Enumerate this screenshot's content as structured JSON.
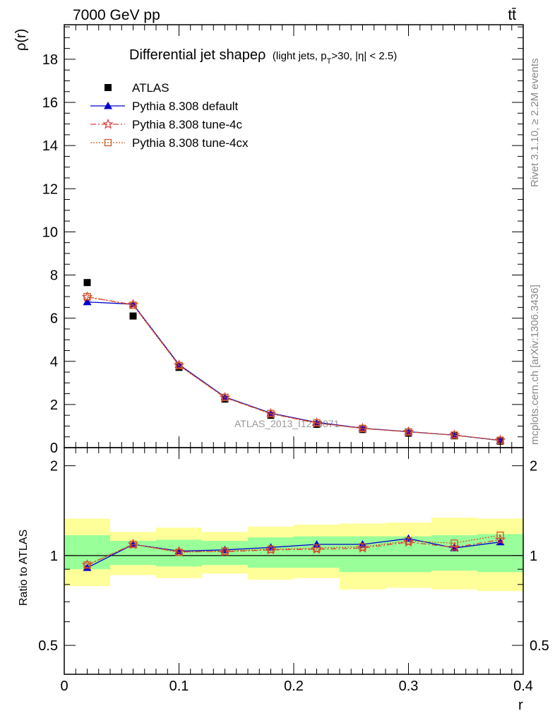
{
  "header": {
    "left": "7000 GeV pp",
    "right": "tt̄"
  },
  "side_labels": {
    "rivet": "Rivet 3.1.10, ≥ 2.2M events",
    "mcplots": "mcplots.cern.ch [arXiv:1306.3436]"
  },
  "chart_data": [
    {
      "type": "scatter",
      "title": "Differential jet shapeρ (light jets, pT>30, |η| < 2.5)",
      "title_main": "Differential jet shapeρ",
      "title_sub": "(light jets, p",
      "title_sub_T": "T",
      "title_sub_rest": ">30, |η| < 2.5)",
      "watermark": "ATLAS_2013_I1243871",
      "xlabel": "r",
      "ylabel": "ρ(r)",
      "xlim": [
        0,
        0.4
      ],
      "ylim": [
        0,
        19.6
      ],
      "x_ticks": [
        "0",
        "0.1",
        "0.2",
        "0.3",
        "0.4"
      ],
      "y_ticks": [
        "0",
        "2",
        "4",
        "6",
        "8",
        "10",
        "12",
        "14",
        "16",
        "18"
      ],
      "grid": false,
      "legend_position": "top-left",
      "x": [
        0.02,
        0.06,
        0.1,
        0.14,
        0.18,
        0.22,
        0.26,
        0.3,
        0.34,
        0.38
      ],
      "series": [
        {
          "name": "ATLAS",
          "color": "#000000",
          "marker": "square",
          "values": [
            7.65,
            6.1,
            3.72,
            2.25,
            1.5,
            1.08,
            0.84,
            0.67,
            0.55,
            0.3
          ]
        },
        {
          "name": "Pythia 8.308 default",
          "color": "#0000cc",
          "marker": "triangle",
          "line": "solid",
          "values": [
            6.75,
            6.65,
            3.85,
            2.35,
            1.6,
            1.17,
            0.9,
            0.74,
            0.58,
            0.33
          ]
        },
        {
          "name": "Pythia 8.308 tune-4c",
          "color": "#e03c3c",
          "marker": "star",
          "line": "dashdot",
          "values": [
            6.98,
            6.63,
            3.82,
            2.32,
            1.57,
            1.14,
            0.89,
            0.73,
            0.58,
            0.34
          ]
        },
        {
          "name": "Pythia 8.308 tune-4cx",
          "color": "#cc5a1e",
          "marker": "open-square",
          "line": "dotted",
          "values": [
            7.0,
            6.6,
            3.8,
            2.33,
            1.58,
            1.15,
            0.89,
            0.73,
            0.58,
            0.34
          ]
        }
      ]
    },
    {
      "type": "scatter",
      "ylabel": "Ratio to ATLAS",
      "xlabel": "r",
      "xlim": [
        0,
        0.4
      ],
      "ylim": [
        0.4,
        2.3
      ],
      "y_scale": "log",
      "y_ticks": [
        "0.5",
        "1",
        "2"
      ],
      "reference_line": 1,
      "x": [
        0.02,
        0.06,
        0.1,
        0.14,
        0.18,
        0.22,
        0.26,
        0.3,
        0.34,
        0.38
      ],
      "bin_edges": [
        0,
        0.04,
        0.08,
        0.12,
        0.16,
        0.2,
        0.24,
        0.28,
        0.32,
        0.36,
        0.4
      ],
      "band_inner": {
        "color": "#99ff99",
        "low": [
          0.9,
          0.93,
          0.92,
          0.93,
          0.91,
          0.91,
          0.88,
          0.88,
          0.89,
          0.88
        ],
        "high": [
          1.17,
          1.12,
          1.13,
          1.12,
          1.15,
          1.16,
          1.16,
          1.16,
          1.17,
          1.18
        ]
      },
      "band_outer": {
        "color": "#ffff99",
        "low": [
          0.79,
          0.86,
          0.84,
          0.87,
          0.83,
          0.84,
          0.77,
          0.78,
          0.77,
          0.76
        ],
        "high": [
          1.33,
          1.2,
          1.24,
          1.2,
          1.25,
          1.27,
          1.28,
          1.29,
          1.34,
          1.33
        ]
      },
      "series": [
        {
          "name": "Pythia 8.308 default",
          "color": "#0000cc",
          "marker": "triangle",
          "line": "solid",
          "values": [
            0.91,
            1.09,
            1.035,
            1.045,
            1.065,
            1.09,
            1.09,
            1.14,
            1.06,
            1.11
          ]
        },
        {
          "name": "Pythia 8.308 tune-4c",
          "color": "#e03c3c",
          "marker": "star",
          "line": "dashdot",
          "values": [
            0.93,
            1.09,
            1.03,
            1.03,
            1.045,
            1.05,
            1.06,
            1.11,
            1.065,
            1.13
          ]
        },
        {
          "name": "Pythia 8.308 tune-4cx",
          "color": "#cc5a1e",
          "marker": "open-square",
          "line": "dotted",
          "values": [
            0.93,
            1.09,
            1.025,
            1.035,
            1.05,
            1.06,
            1.07,
            1.12,
            1.1,
            1.17
          ]
        }
      ]
    }
  ]
}
